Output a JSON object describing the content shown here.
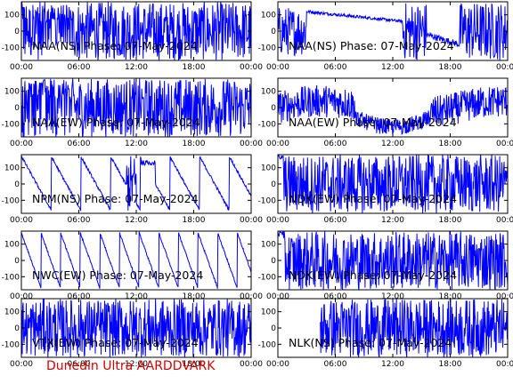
{
  "footer": "Dunedin Ultra AARDDVARK",
  "colors": {
    "trace": "#0000ff",
    "frame": "#000000",
    "footer": "#d40000"
  },
  "x_ticks": [
    "00:00",
    "06:00",
    "12:00",
    "18:00",
    "00:00"
  ],
  "y_ticks": [
    100,
    0,
    -100
  ],
  "chart_data": [
    {
      "type": "line",
      "title": "NAA(NS) Phase: 07-May-2024",
      "ylim": [
        -180,
        180
      ],
      "x_range_hours": [
        0,
        24
      ],
      "pattern": "noisy_dense"
    },
    {
      "type": "line",
      "title": "NAA(NS) Phase: 07-May-2024",
      "ylim": [
        -180,
        180
      ],
      "x_range_hours": [
        0,
        24
      ],
      "pattern": "drift_mid"
    },
    {
      "type": "line",
      "title": "NAA(EW) Phase: 07-May-2024",
      "ylim": [
        -180,
        180
      ],
      "x_range_hours": [
        0,
        24
      ],
      "pattern": "noisy_dense"
    },
    {
      "type": "line",
      "title": "NAA(EW) Phase: 07-May-2024",
      "ylim": [
        -180,
        180
      ],
      "x_range_hours": [
        0,
        24
      ],
      "pattern": "wide_band"
    },
    {
      "type": "line",
      "title": "NPM(NS) Phase: 07-May-2024",
      "ylim": [
        -180,
        180
      ],
      "x_range_hours": [
        0,
        24
      ],
      "pattern": "sawtooth_partial"
    },
    {
      "type": "line",
      "title": "NDK(EW) Phase: 07-May-2024",
      "ylim": [
        -180,
        180
      ],
      "x_range_hours": [
        0,
        24
      ],
      "pattern": "striped"
    },
    {
      "type": "line",
      "title": "NWC(EW) Phase: 07-May-2024",
      "ylim": [
        -180,
        180
      ],
      "x_range_hours": [
        0,
        24
      ],
      "pattern": "sawtooth_full"
    },
    {
      "type": "line",
      "title": "NDK(EW) Phase: 07-May-2024",
      "ylim": [
        -180,
        180
      ],
      "x_range_hours": [
        0,
        24
      ],
      "pattern": "striped"
    },
    {
      "type": "line",
      "title": "VTX(EW) Phase: 07-May-2024",
      "ylim": [
        -180,
        180
      ],
      "x_range_hours": [
        0,
        24
      ],
      "pattern": "noisy_late"
    },
    {
      "type": "line",
      "title": "NLK(NS) Phase: 07-May-2024",
      "ylim": [
        -180,
        180
      ],
      "x_range_hours": [
        0,
        24
      ],
      "pattern": "fill_late"
    }
  ]
}
